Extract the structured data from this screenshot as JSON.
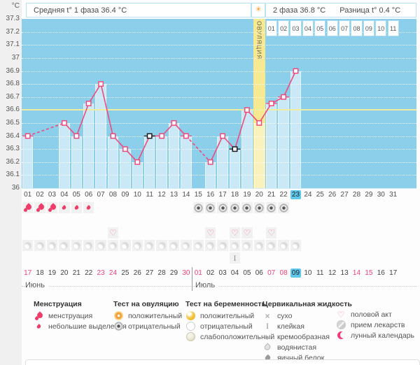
{
  "axis": {
    "units": "°C"
  },
  "header": {
    "phase1": "Средняя t° 1 фаза 36.4 °C",
    "phase2": "2 фаза 36.8 °C",
    "diff": "Разница t° 0.4 °C"
  },
  "chart_data": {
    "type": "line",
    "title": "Basal body temperature cycle chart",
    "ylim": [
      36,
      37.3
    ],
    "ytick_step": 0.1,
    "ytick_labels": [
      "36",
      "36.1",
      "36.2",
      "36.3",
      "36.4",
      "36.5",
      "36.6",
      "36.7",
      "36.8",
      "36.9",
      "37",
      "37.1",
      "37.2",
      "37.3"
    ],
    "xtick_labels": [
      "01",
      "02",
      "03",
      "04",
      "05",
      "06",
      "07",
      "08",
      "09",
      "10",
      "11",
      "12",
      "13",
      "14",
      "15",
      "16",
      "17",
      "18",
      "19",
      "20",
      "21",
      "22",
      "23",
      "24",
      "25",
      "26",
      "27",
      "28",
      "29",
      "30",
      "31"
    ],
    "coverline": 36.6,
    "ovulation_day": 20,
    "ovulation_label": "ОВУЛЯЦИЯ",
    "current_cycle_day": 23,
    "dpo_labels": [
      "01",
      "02",
      "03",
      "04",
      "05",
      "06",
      "07",
      "08",
      "09",
      "10",
      "11"
    ],
    "points": [
      {
        "day": 1,
        "temp": 36.4,
        "flag": "time"
      },
      {
        "day": 4,
        "temp": 36.5
      },
      {
        "day": 5,
        "temp": 36.4
      },
      {
        "day": 6,
        "temp": 36.65
      },
      {
        "day": 7,
        "temp": 36.8
      },
      {
        "day": 8,
        "temp": 36.4
      },
      {
        "day": 9,
        "temp": 36.3
      },
      {
        "day": 10,
        "temp": 36.2
      },
      {
        "day": 11,
        "temp": 36.4,
        "flag": "excluded"
      },
      {
        "day": 12,
        "temp": 36.4
      },
      {
        "day": 13,
        "temp": 36.5
      },
      {
        "day": 14,
        "temp": 36.4,
        "flag": "time"
      },
      {
        "day": 16,
        "temp": 36.2
      },
      {
        "day": 17,
        "temp": 36.4
      },
      {
        "day": 18,
        "temp": 36.3,
        "flag": "excluded"
      },
      {
        "day": 19,
        "temp": 36.6
      },
      {
        "day": 20,
        "temp": 36.5
      },
      {
        "day": 21,
        "temp": 36.65,
        "flag": "time"
      },
      {
        "day": 22,
        "temp": 36.7,
        "flag": "time"
      },
      {
        "day": 23,
        "temp": 36.9
      }
    ],
    "menstruation": [
      {
        "day": 1,
        "level": "heavy"
      },
      {
        "day": 2,
        "level": "heavy"
      },
      {
        "day": 3,
        "level": "heavy"
      },
      {
        "day": 4,
        "level": "light"
      },
      {
        "day": 5,
        "level": "light"
      },
      {
        "day": 6,
        "level": "light"
      }
    ],
    "ovulation_tests": [
      {
        "day": 15,
        "result": "negative"
      },
      {
        "day": 16,
        "result": "negative"
      },
      {
        "day": 17,
        "result": "negative"
      },
      {
        "day": 18,
        "result": "negative"
      },
      {
        "day": 19,
        "result": "negative"
      },
      {
        "day": 20,
        "result": "negative"
      },
      {
        "day": 21,
        "result": "negative"
      },
      {
        "day": 22,
        "result": "negative"
      }
    ],
    "intercourse_days": [
      8,
      16,
      18,
      19,
      21
    ],
    "lunar_days": [
      1,
      2,
      3,
      4,
      5,
      6,
      7,
      8,
      9,
      10,
      11,
      12,
      13,
      14,
      15,
      16,
      17,
      18,
      19,
      20,
      21,
      22,
      23
    ],
    "cervical_fluid": [
      {
        "day": 18,
        "type": "sticky"
      }
    ],
    "calendar": {
      "months": [
        {
          "name": "Июнь"
        },
        {
          "name": "Июль"
        }
      ],
      "divider_after_day": 14,
      "dates": [
        {
          "label": "17",
          "red": true
        },
        {
          "label": "18"
        },
        {
          "label": "19"
        },
        {
          "label": "20"
        },
        {
          "label": "21"
        },
        {
          "label": "22"
        },
        {
          "label": "23",
          "red": true
        },
        {
          "label": "24",
          "red": true
        },
        {
          "label": "25"
        },
        {
          "label": "26"
        },
        {
          "label": "27"
        },
        {
          "label": "28"
        },
        {
          "label": "29"
        },
        {
          "label": "30",
          "red": true
        },
        {
          "label": "01",
          "red": true
        },
        {
          "label": "02"
        },
        {
          "label": "03"
        },
        {
          "label": "04"
        },
        {
          "label": "05"
        },
        {
          "label": "06"
        },
        {
          "label": "07",
          "red": true
        },
        {
          "label": "08",
          "red": true
        },
        {
          "label": "09",
          "today": true
        },
        {
          "label": "10"
        },
        {
          "label": "11"
        },
        {
          "label": "12"
        },
        {
          "label": "13"
        },
        {
          "label": "14",
          "red": true
        },
        {
          "label": "15",
          "red": true
        },
        {
          "label": "16"
        },
        {
          "label": "17"
        }
      ]
    },
    "colors": {
      "plot_bg": "#8ccfeb",
      "bar": "#cbe8f7",
      "ovulation_band": "#f7e992",
      "coverline": "#f0eda2",
      "line": "#ee4a7c",
      "excluded_marker": "#1a1a1a",
      "today_highlight": "#5ec7ec",
      "weekend_date": "#f24076"
    }
  },
  "legend": {
    "menstruation": {
      "title": "Менструация",
      "items": [
        {
          "icon": "drop-heavy",
          "label": "менструация"
        },
        {
          "icon": "drop-light",
          "label": "небольшие выделения"
        }
      ]
    },
    "ovulation_test": {
      "title": "Тест на овуляцию",
      "items": [
        {
          "icon": "ovtest-positive",
          "label": "положительный"
        },
        {
          "icon": "ovtest-negative",
          "label": "отрицательный"
        }
      ]
    },
    "pregnancy_test": {
      "title": "Тест на беременность",
      "items": [
        {
          "icon": "pregtest-positive",
          "label": "положительный"
        },
        {
          "icon": "pregtest-negative",
          "label": "отрицательный"
        },
        {
          "icon": "pregtest-weak",
          "label": "слабоположительный"
        }
      ]
    },
    "cervical_fluid": {
      "title": "Цервикальная жидкость",
      "items": [
        {
          "icon": "dry",
          "label": "сухо"
        },
        {
          "icon": "sticky",
          "label": "клейкая"
        },
        {
          "icon": "creamy",
          "label": "кремообразная"
        },
        {
          "icon": "watery",
          "label": "водянистая"
        },
        {
          "icon": "eggwhite",
          "label": "яичный белок"
        }
      ]
    },
    "other": {
      "items": [
        {
          "icon": "heart",
          "label": "половой акт"
        },
        {
          "icon": "pill",
          "label": "прием лекарств"
        },
        {
          "icon": "lunar",
          "label": "лунный календарь"
        }
      ]
    }
  }
}
